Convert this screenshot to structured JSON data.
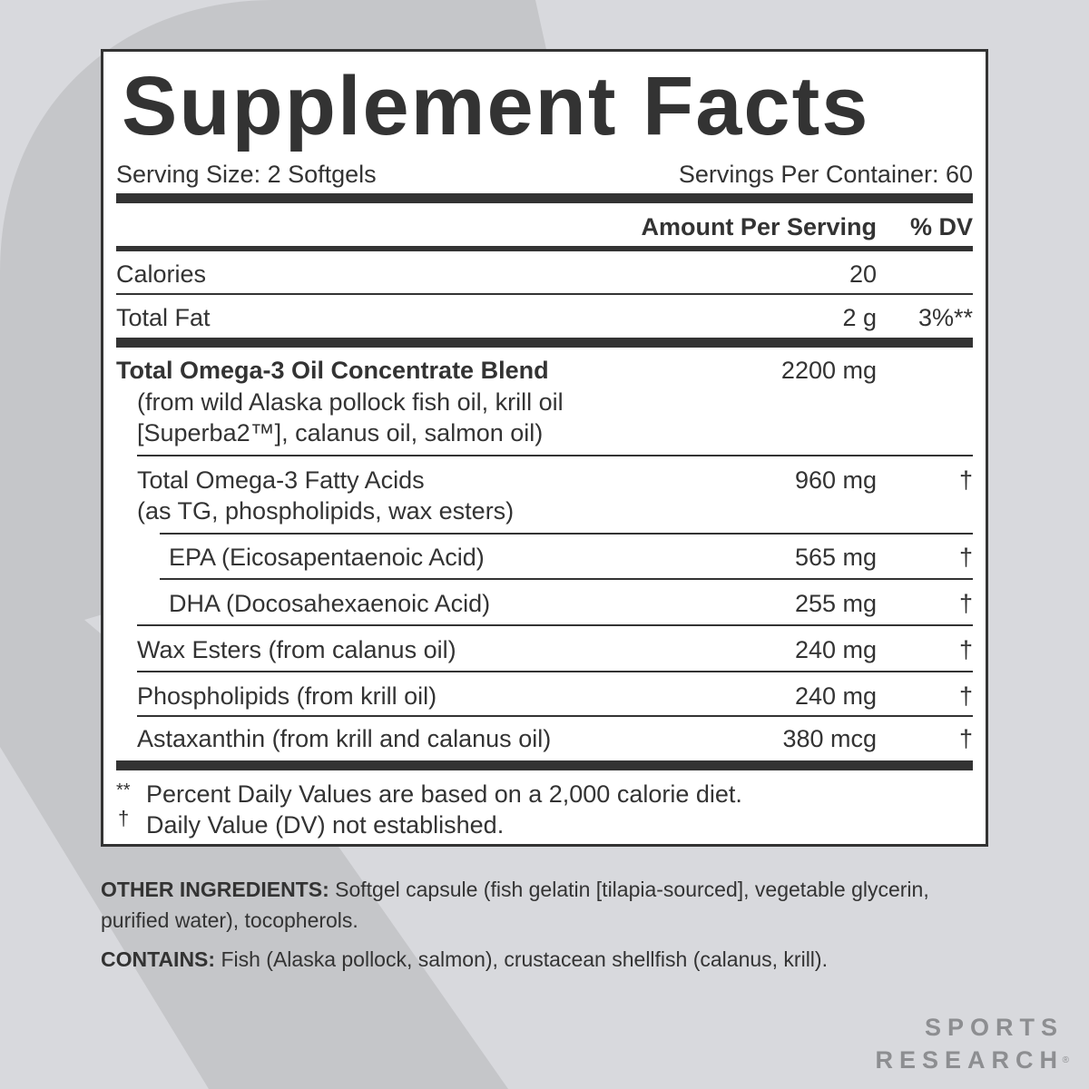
{
  "colors": {
    "background": "#d8d9dd",
    "shape": "#c5c6c9",
    "ink": "#333333",
    "logo": "#8d8e91"
  },
  "title": "Supplement Facts",
  "serving_size": "Serving Size: 2 Softgels",
  "servings_per_container": "Servings Per Container: 60",
  "header": {
    "amount": "Amount Per Serving",
    "dv": "% DV"
  },
  "rows": [
    {
      "name": "Calories",
      "amount": "20",
      "dv": ""
    },
    {
      "name": "Total Fat",
      "amount": "2 g",
      "dv": "3%**"
    },
    {
      "name": "Total Omega-3 Oil Concentrate Blend",
      "sub": [
        "(from wild Alaska pollock fish oil, krill oil",
        "[Superba2™], calanus oil, salmon oil)"
      ],
      "amount": "2200 mg",
      "dv": ""
    },
    {
      "name": "Total Omega-3 Fatty Acids",
      "sub": [
        "(as TG, phospholipids, wax esters)"
      ],
      "amount": "960 mg",
      "dv": "†"
    },
    {
      "name": "EPA (Eicosapentaenoic Acid)",
      "amount": "565 mg",
      "dv": "†"
    },
    {
      "name": "DHA (Docosahexaenoic Acid)",
      "amount": "255 mg",
      "dv": "†"
    },
    {
      "name": "Wax Esters (from calanus oil)",
      "amount": "240 mg",
      "dv": "†"
    },
    {
      "name": "Phospholipids (from krill oil)",
      "amount": "240 mg",
      "dv": "†"
    },
    {
      "name": "Astaxanthin (from krill and calanus oil)",
      "amount": "380 mcg",
      "dv": "†"
    }
  ],
  "footnotes": [
    {
      "mark": "**",
      "text": "Percent Daily Values are based on a 2,000 calorie diet."
    },
    {
      "mark": "†",
      "text": "Daily Value (DV) not established."
    }
  ],
  "other_ingredients": {
    "label": "OTHER INGREDIENTS:",
    "text": " Softgel capsule (fish gelatin [tilapia-sourced], vegetable glycerin, purified water), tocopherols."
  },
  "contains": {
    "label": "CONTAINS:",
    "text": " Fish (Alaska pollock, salmon), crustacean shellfish (calanus, krill)."
  },
  "logo": {
    "line1": "SPORTS",
    "line2": "RESEARCH",
    "mark": "®"
  }
}
